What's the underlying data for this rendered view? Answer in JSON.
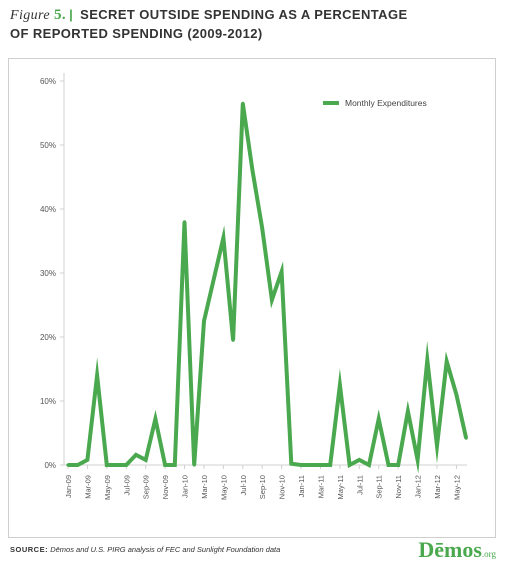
{
  "figure": {
    "prefix": "Figure",
    "number": "5.",
    "title_line1": "SECRET OUTSIDE SPENDING AS A PERCENTAGE",
    "title_line2": "OF REPORTED SPENDING (2009-2012)"
  },
  "source": {
    "label": "SOURCE:",
    "text": "Dēmos and U.S. PIRG analysis of FEC and Sunlight Foundation data"
  },
  "logo": {
    "main": "Dēmos",
    "sub": ".org"
  },
  "colors": {
    "accent": "#4aa84e",
    "axis": "#d0d0d0",
    "text": "#333333"
  },
  "chart_data": {
    "type": "line",
    "title": "SECRET OUTSIDE SPENDING AS A PERCENTAGE OF REPORTED SPENDING (2009-2012)",
    "xlabel": "",
    "ylabel": "",
    "ylim": [
      0,
      60
    ],
    "y_ticks": [
      "0%",
      "10%",
      "20%",
      "30%",
      "40%",
      "50%",
      "60%"
    ],
    "x_tick_labels": [
      "Jan-09",
      "Mar-09",
      "May-09",
      "Jul-09",
      "Sep-09",
      "Nov-09",
      "Jan-10",
      "Mar-10",
      "May-10",
      "Jul-10",
      "Sep-10",
      "Nov-10",
      "Jan-11",
      "Mar-11",
      "May-11",
      "Jul-11",
      "Sep-11",
      "Nov-11",
      "Jan-12",
      "Mar-12",
      "May-12"
    ],
    "legend": {
      "position": "top-right",
      "entries": [
        "Monthly Expenditures"
      ]
    },
    "grid": false,
    "series": [
      {
        "name": "Monthly Expenditures",
        "color": "#4aa84e",
        "x": [
          "Jan-09",
          "Feb-09",
          "Mar-09",
          "Apr-09",
          "May-09",
          "Jun-09",
          "Jul-09",
          "Aug-09",
          "Sep-09",
          "Oct-09",
          "Nov-09",
          "Dec-09",
          "Jan-10",
          "Feb-10",
          "Mar-10",
          "Apr-10",
          "May-10",
          "Jun-10",
          "Jul-10",
          "Aug-10",
          "Sep-10",
          "Oct-10",
          "Nov-10",
          "Dec-10",
          "Jan-11",
          "Feb-11",
          "Mar-11",
          "Apr-11",
          "May-11",
          "Jun-11",
          "Jul-11",
          "Aug-11",
          "Sep-11",
          "Oct-11",
          "Nov-11",
          "Dec-11",
          "Jan-12",
          "Feb-12",
          "Mar-12",
          "Apr-12",
          "May-12",
          "Jun-12"
        ],
        "values": [
          0,
          0,
          0.8,
          14,
          0,
          0,
          0,
          1.6,
          0.8,
          7.2,
          0,
          0,
          38,
          0,
          22.5,
          29,
          35.5,
          19.5,
          56.5,
          46,
          37,
          25.8,
          30.2,
          0.2,
          0,
          0,
          0,
          0,
          12.5,
          0,
          0.8,
          0,
          7.2,
          0,
          0,
          8.4,
          0.8,
          16.4,
          3,
          16.2,
          11,
          4.2
        ]
      }
    ]
  }
}
